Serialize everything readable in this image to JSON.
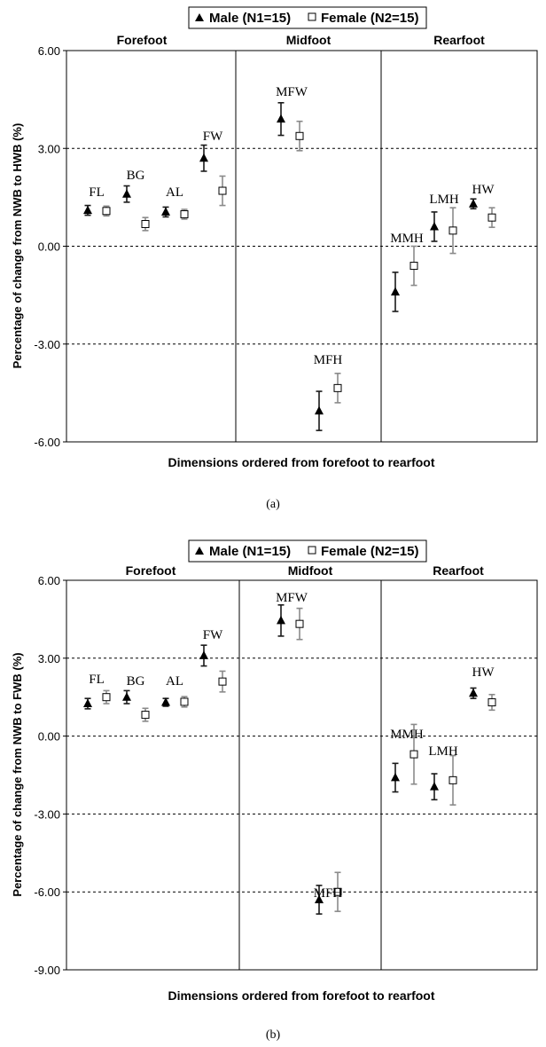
{
  "chart_data": [
    {
      "type": "scatter",
      "panel_label": "(a)",
      "ylabel": "Percentage of change from NWB to HWB (%)",
      "xlabel": "Dimensions ordered from forefoot to rearfoot",
      "ylim": [
        -6,
        6
      ],
      "yticks": [
        -6,
        -3,
        0,
        3,
        6
      ],
      "ytick_labels": [
        "-6.00",
        "-3.00",
        "0.00",
        "3.00",
        "6.00"
      ],
      "grid": "horizontal dashed",
      "legend": {
        "placement": "top-center",
        "entries": [
          {
            "label": "Male (N1=15)",
            "marker": "triangle"
          },
          {
            "label": "Female (N2=15)",
            "marker": "square"
          }
        ]
      },
      "regions": [
        "Forefoot",
        "Midfoot",
        "Rearfoot"
      ],
      "categories": [
        "FL",
        "BG",
        "AL",
        "FW",
        "MFW",
        "MFH",
        "MMH",
        "LMH",
        "HW"
      ],
      "series": [
        {
          "name": "Male (N1=15)",
          "marker": "triangle",
          "color": "#1a1a1a",
          "values": [
            1.1,
            1.6,
            1.05,
            2.7,
            3.9,
            -5.05,
            -1.4,
            0.6,
            1.3
          ],
          "err": [
            0.15,
            0.25,
            0.15,
            0.4,
            0.5,
            0.6,
            0.6,
            0.45,
            0.15
          ]
        },
        {
          "name": "Female (N2=15)",
          "marker": "square",
          "color": "#8a8a8a",
          "values": [
            1.08,
            0.68,
            0.98,
            1.7,
            3.38,
            -4.35,
            -0.6,
            0.48,
            0.88
          ],
          "err": [
            0.15,
            0.2,
            0.15,
            0.45,
            0.45,
            0.45,
            0.6,
            0.7,
            0.3
          ]
        }
      ]
    },
    {
      "type": "scatter",
      "panel_label": "(b)",
      "ylabel": "Percentage of change from NWB to FWB (%)",
      "xlabel": "Dimensions ordered from forefoot to rearfoot",
      "ylim": [
        -9,
        6
      ],
      "yticks": [
        -9,
        -6,
        -3,
        0,
        3,
        6
      ],
      "ytick_labels": [
        "-9.00",
        "-6.00",
        "-3.00",
        "0.00",
        "3.00",
        "6.00"
      ],
      "grid": "horizontal dashed",
      "legend": {
        "placement": "top-center",
        "entries": [
          {
            "label": "Male (N1=15)",
            "marker": "triangle"
          },
          {
            "label": "Female (N2=15)",
            "marker": "square"
          }
        ]
      },
      "regions": [
        "Forefoot",
        "Midfoot",
        "Rearfoot"
      ],
      "categories": [
        "FL",
        "BG",
        "AL",
        "FW",
        "MFW",
        "MFH",
        "MMH",
        "LMH",
        "HW"
      ],
      "series": [
        {
          "name": "Male (N1=15)",
          "marker": "triangle",
          "color": "#1a1a1a",
          "values": [
            1.25,
            1.5,
            1.3,
            3.1,
            4.45,
            -6.3,
            -1.6,
            -1.95,
            1.65
          ],
          "err": [
            0.2,
            0.25,
            0.15,
            0.4,
            0.6,
            0.55,
            0.55,
            0.5,
            0.2
          ]
        },
        {
          "name": "Female (N2=15)",
          "marker": "square",
          "color": "#8a8a8a",
          "values": [
            1.5,
            0.82,
            1.32,
            2.1,
            4.32,
            -6.0,
            -0.7,
            -1.7,
            1.3
          ],
          "err": [
            0.25,
            0.25,
            0.2,
            0.4,
            0.6,
            0.75,
            1.15,
            0.95,
            0.3
          ]
        }
      ]
    }
  ]
}
